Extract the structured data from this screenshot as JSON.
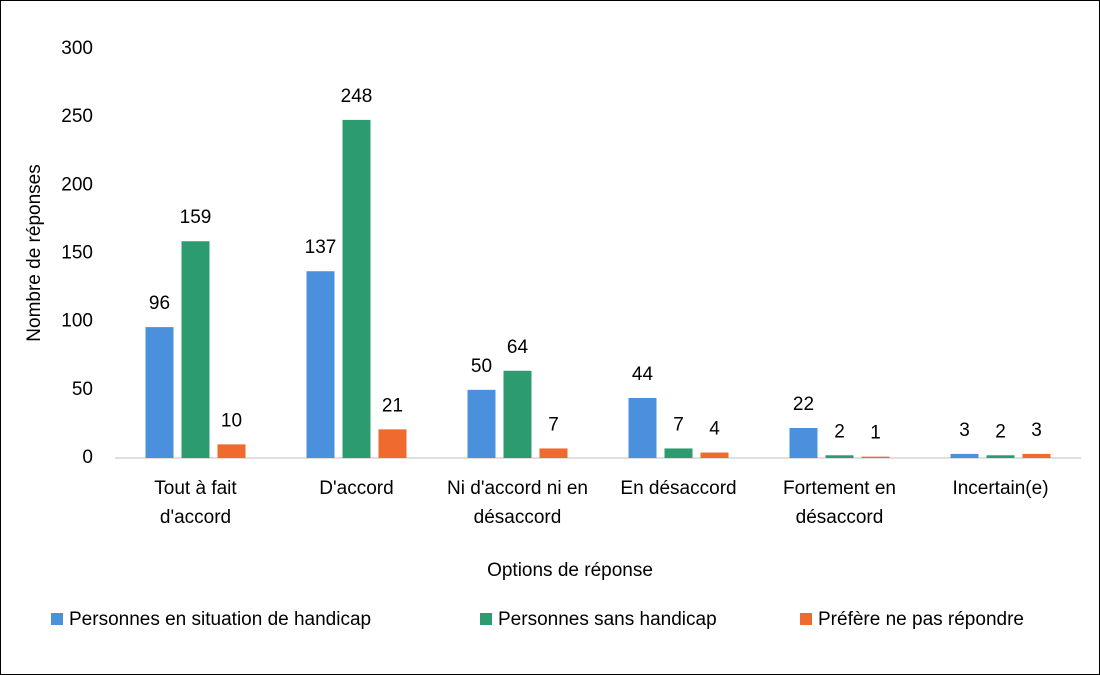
{
  "chart_data": {
    "type": "bar",
    "x_label": "Options de réponse",
    "y_label": "Nombre de réponses",
    "categories": [
      "Tout à fait d'accord",
      "D'accord",
      "Ni d'accord ni en désaccord",
      "En désaccord",
      "Fortement en désaccord",
      "Incertain(e)"
    ],
    "series": [
      {
        "name": "Personnes en situation de handicap",
        "color": "#4a90dc",
        "values": [
          96,
          137,
          50,
          44,
          22,
          3
        ]
      },
      {
        "name": "Personnes sans handicap",
        "color": "#2d9b70",
        "values": [
          159,
          248,
          64,
          7,
          2,
          2
        ]
      },
      {
        "name": "Préfère ne pas répondre",
        "color": "#ee6a2e",
        "values": [
          10,
          21,
          7,
          4,
          1,
          3
        ]
      }
    ],
    "ylim": [
      0,
      300
    ],
    "yticks": [
      0,
      50,
      100,
      150,
      200,
      250,
      300
    ],
    "grid": false,
    "legend": "bottom"
  }
}
